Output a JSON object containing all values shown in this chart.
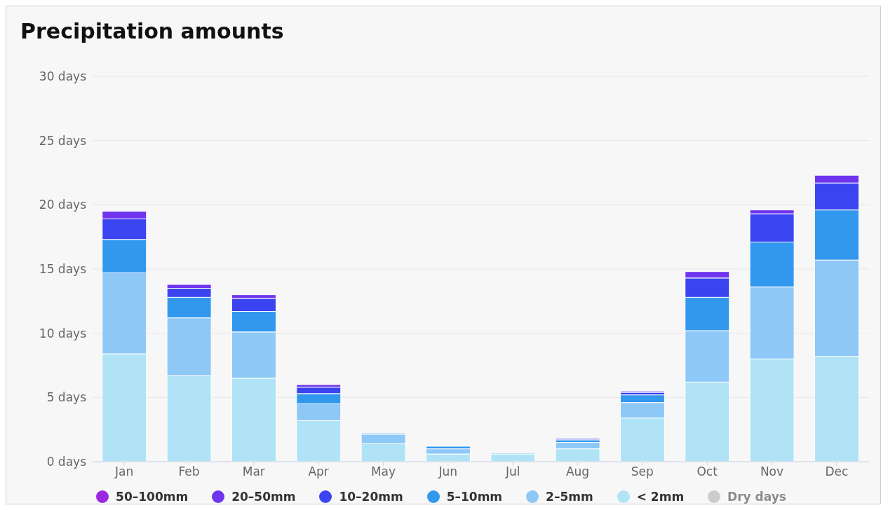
{
  "chart_data": {
    "type": "bar",
    "title": "Precipitation amounts",
    "stacked": true,
    "grid": "y",
    "legend": "bottom",
    "categories": [
      "Jan",
      "Feb",
      "Mar",
      "Apr",
      "May",
      "Jun",
      "Jul",
      "Aug",
      "Sep",
      "Oct",
      "Nov",
      "Dec"
    ],
    "ylim": [
      0,
      30
    ],
    "yticks": [
      {
        "value": 0,
        "label": "0 days"
      },
      {
        "value": 5,
        "label": "5 days"
      },
      {
        "value": 10,
        "label": "10 days"
      },
      {
        "value": 15,
        "label": "15 days"
      },
      {
        "value": 20,
        "label": "20 days"
      },
      {
        "value": 25,
        "label": "25 days"
      },
      {
        "value": 30,
        "label": "30 days"
      }
    ],
    "series": [
      {
        "name": "Dry days",
        "color": "#cccccc",
        "values": [
          null,
          null,
          null,
          null,
          null,
          null,
          null,
          null,
          null,
          null,
          null,
          null
        ]
      },
      {
        "name": "< 2mm",
        "color": "#b0e3f6",
        "values": [
          8.4,
          6.7,
          6.5,
          3.2,
          1.4,
          0.6,
          0.6,
          1.0,
          3.4,
          6.2,
          8.0,
          8.2
        ]
      },
      {
        "name": "2–5mm",
        "color": "#8ec8f7",
        "values": [
          6.3,
          4.5,
          3.6,
          1.3,
          0.7,
          0.4,
          0.1,
          0.5,
          1.2,
          4.0,
          5.6,
          7.5
        ]
      },
      {
        "name": "5–10mm",
        "color": "#3298ee",
        "values": [
          2.6,
          1.6,
          1.6,
          0.8,
          0.1,
          0.2,
          0,
          0.2,
          0.6,
          2.6,
          3.5,
          3.9
        ]
      },
      {
        "name": "10–20mm",
        "color": "#3a44f0",
        "values": [
          1.6,
          0.7,
          1.0,
          0.5,
          0,
          null,
          0,
          0.1,
          0.2,
          1.5,
          2.2,
          2.1
        ]
      },
      {
        "name": "20–50mm",
        "color": "#6f35ee",
        "values": [
          0.6,
          0.3,
          0.3,
          0.2,
          0,
          0,
          0,
          0,
          0.1,
          0.5,
          0.3,
          0.6
        ]
      },
      {
        "name": "50–100mm",
        "color": "#9b27e0",
        "values": [
          0,
          0,
          0,
          0,
          0,
          0,
          0,
          0,
          0,
          0,
          0,
          0
        ]
      }
    ]
  }
}
